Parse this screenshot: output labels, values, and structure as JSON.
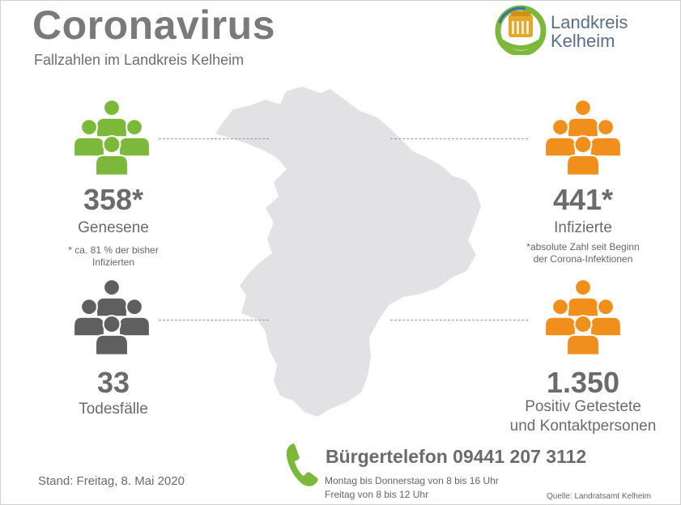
{
  "header": {
    "title": "Coronavirus",
    "subtitle": "Fallzahlen im Landkreis Kelheim"
  },
  "logo": {
    "line1": "Landkreis",
    "line2": "Kelheim",
    "icon": "kelheim-befreiungshalle-logo",
    "colors": {
      "green": "#7cb83a",
      "gold": "#e3a72a",
      "blue": "#3a6fb2"
    }
  },
  "stats": {
    "recovered": {
      "value": "358*",
      "label": "Genesene",
      "note_line1": "* ca. 81 % der bisher",
      "note_line2": "Infizierten",
      "icon": "people-group-icon",
      "color": "#7cb83a"
    },
    "infected": {
      "value": "441*",
      "label": "Infizierte",
      "note_line1": "*absolute Zahl seit Beginn",
      "note_line2": "der Corona-Infektionen",
      "icon": "people-group-icon",
      "color": "#f08f1c"
    },
    "deaths": {
      "value": "33",
      "label": "Todesfälle",
      "icon": "people-group-icon",
      "color": "#5f5f5f"
    },
    "positive": {
      "value": "1.350",
      "label_line1": "Positiv Getestete",
      "label_line2": "und Kontaktpersonen",
      "icon": "people-group-icon",
      "color": "#f08f1c"
    }
  },
  "map": {
    "icon": "landkreis-kelheim-map",
    "color": "#e2e1e4"
  },
  "hotline": {
    "title": "Bürgertelefon 09441 207 3112",
    "hours_line1": "Montag bis Donnerstag von 8 bis 16 Uhr",
    "hours_line2": "Freitag von 8 bis 12 Uhr",
    "icon": "phone-icon",
    "color": "#7cb83a"
  },
  "footer": {
    "stand": "Stand: Freitag, 8. Mai 2020",
    "source": "Quelle: Landratsamt Kelheim"
  }
}
